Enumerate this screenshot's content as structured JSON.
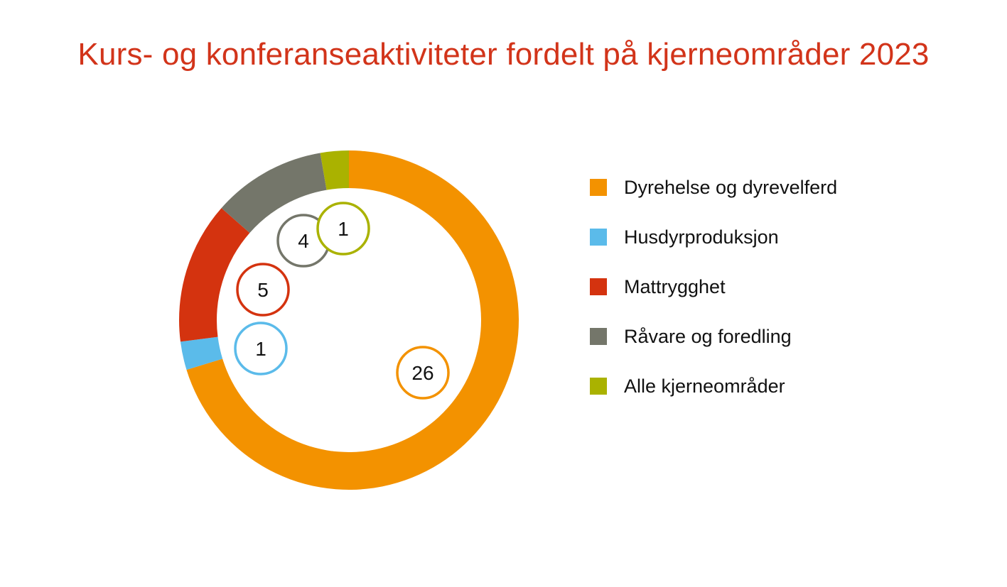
{
  "chart_data": {
    "type": "pie",
    "title": "Kurs- og konferanseaktiviteter fordelt på kjerneområder 2023",
    "categories": [
      "Dyrehelse og dyrevelferd",
      "Husdyrproduksjon",
      "Mattrygghet",
      "Råvare og foredling",
      "Alle kjerneområder"
    ],
    "values": [
      26,
      1,
      5,
      4,
      1
    ],
    "colors": [
      "#f39200",
      "#5bbbea",
      "#d4330f",
      "#74766a",
      "#aab200"
    ],
    "style": "donut",
    "legend_position": "right",
    "value_labels": "circled numbers inside the donut"
  }
}
